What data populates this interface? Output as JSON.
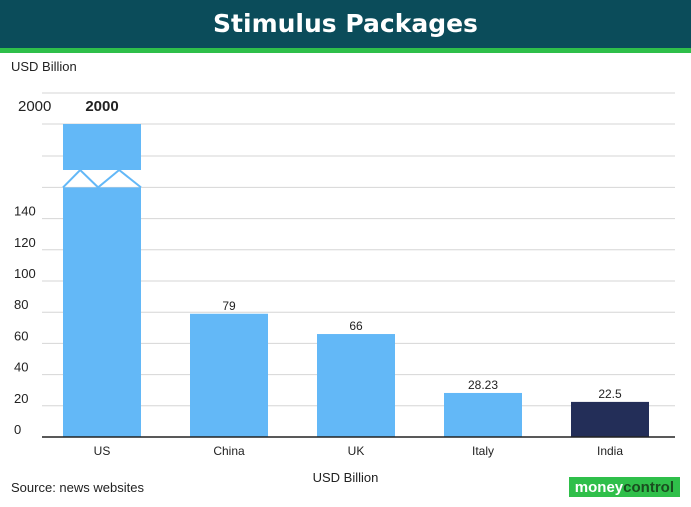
{
  "title": "Stimulus Packages",
  "unit_label": "USD Billion",
  "source": "Source: news websites",
  "logo": {
    "part1": "money",
    "part2": "control"
  },
  "colors": {
    "header_bg": "#0b4c5a",
    "header_accent": "#2fbf4a",
    "bar": "#63b8f7",
    "bar_highlight": "#232e58"
  },
  "chart_data": {
    "type": "bar",
    "title": "Stimulus Packages",
    "xlabel": "USD Billion",
    "ylabel": "USD Billion",
    "categories": [
      "US",
      "China",
      "UK",
      "Italy",
      "India"
    ],
    "values": [
      2000,
      79,
      66,
      28.23,
      22.5
    ],
    "value_labels": [
      "2000",
      "79",
      "66",
      "28.23",
      "22.5"
    ],
    "highlight": "India",
    "axis_break": {
      "from": 160,
      "to": 2000,
      "label": "2000"
    },
    "y_ticks": [
      0,
      20,
      40,
      60,
      80,
      100,
      120,
      140
    ],
    "ylim": [
      0,
      2000
    ],
    "grid": true,
    "legend": "none"
  }
}
